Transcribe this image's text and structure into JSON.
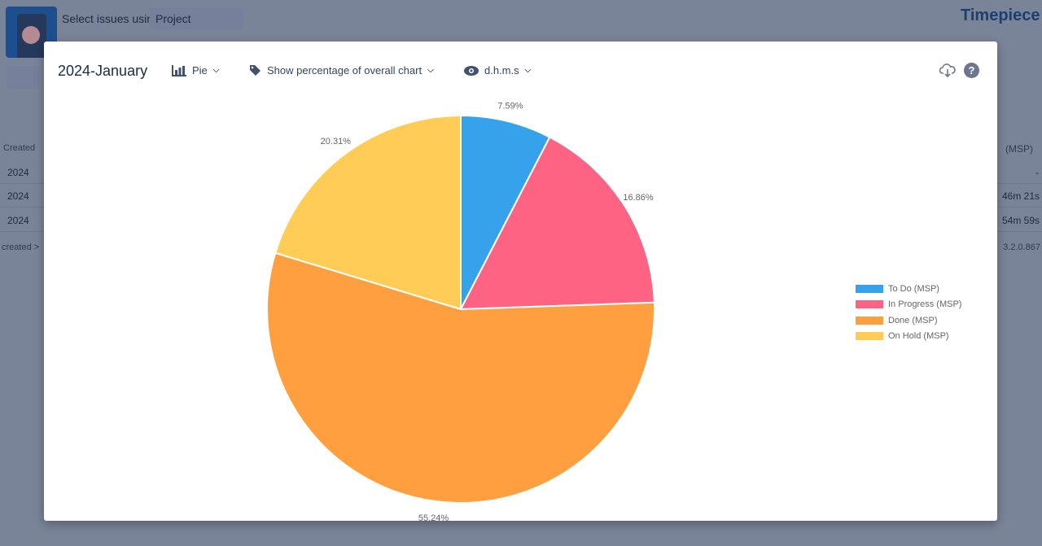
{
  "background": {
    "select_label": "Select issues using",
    "select_value": "Project",
    "logo_text": "Timepiece",
    "table_header_first": "Created",
    "table_header_last": "(MSP)",
    "rows": [
      {
        "first": "2024",
        "last": "-"
      },
      {
        "first": "2024",
        "last": "46m 21s"
      },
      {
        "first": "2024",
        "last": "54m 59s"
      }
    ],
    "footer_left": "created >",
    "version": "3.2.0.867"
  },
  "modal": {
    "title": "2024-January",
    "chart_type_label": "Pie",
    "percentage_label": "Show percentage of overall chart",
    "time_format_label": "d.h.m.s",
    "icons": [
      "bar-chart-icon",
      "tag-icon",
      "eye-icon",
      "cloud-download-icon",
      "help-icon"
    ]
  },
  "chart_data": {
    "type": "pie",
    "categories": [
      "To Do (MSP)",
      "In Progress (MSP)",
      "Done (MSP)",
      "On Hold (MSP)"
    ],
    "values": [
      7.59,
      16.86,
      55.24,
      20.31
    ],
    "labels": [
      "7.59%",
      "16.86%",
      "55.24%",
      "20.31%"
    ],
    "colors": [
      "#36a2eb",
      "#ff6384",
      "#ff9f40",
      "#ffcd56"
    ],
    "legend_position": "right"
  }
}
